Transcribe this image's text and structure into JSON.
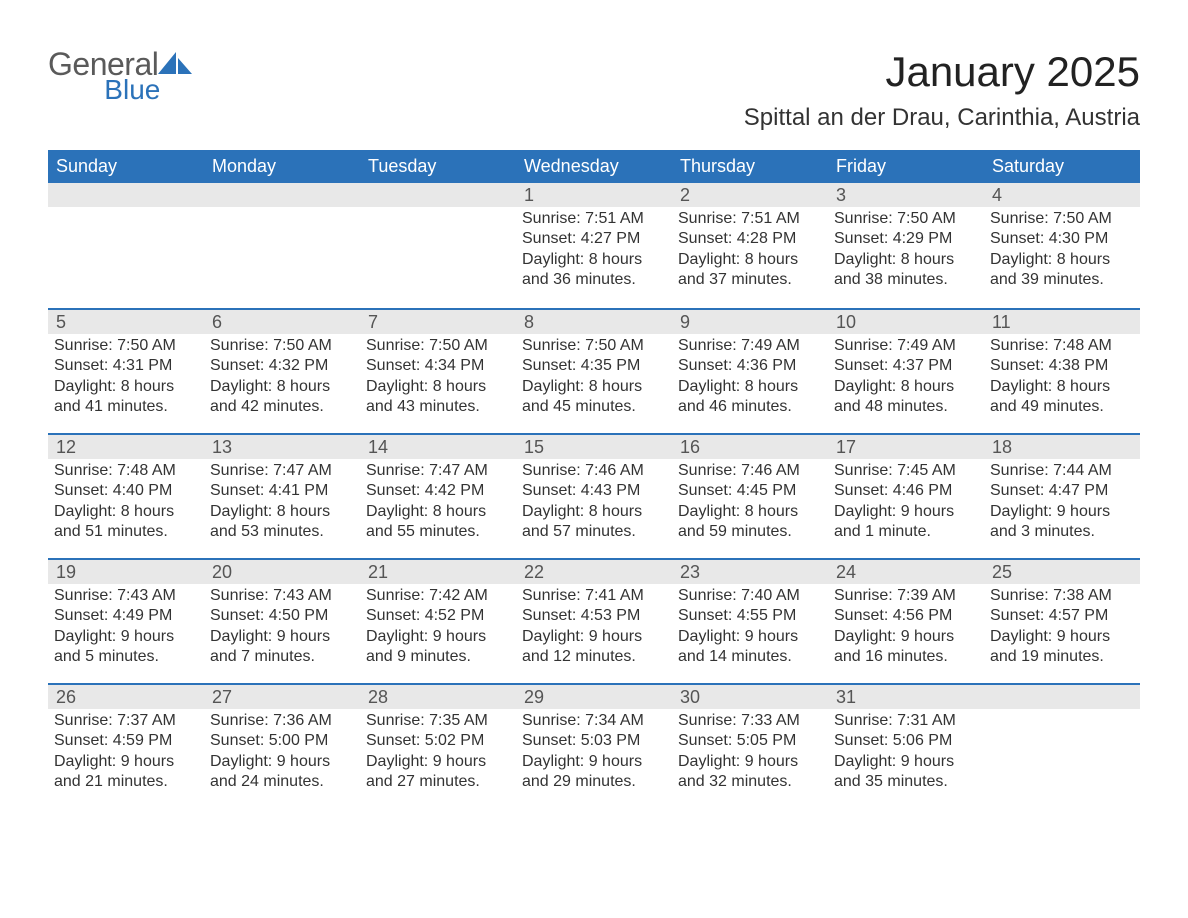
{
  "brand": {
    "name_top": "General",
    "name_bottom": "Blue",
    "text_color_top": "#5a5a5a",
    "text_color_bottom": "#2b72b9",
    "icon_color": "#2b72b9"
  },
  "title": "January 2025",
  "location": "Spittal an der Drau, Carinthia, Austria",
  "colors": {
    "header_bg": "#2b72b9",
    "header_text": "#ffffff",
    "daynum_bg": "#e8e8e8",
    "daynum_text": "#555555",
    "body_text": "#333333",
    "row_divider": "#2b72b9",
    "page_bg": "#ffffff"
  },
  "typography": {
    "title_fontsize": 42,
    "location_fontsize": 24,
    "weekday_fontsize": 18,
    "daynum_fontsize": 18,
    "body_fontsize": 16
  },
  "weekdays": [
    "Sunday",
    "Monday",
    "Tuesday",
    "Wednesday",
    "Thursday",
    "Friday",
    "Saturday"
  ],
  "weeks": [
    [
      {
        "day": null
      },
      {
        "day": null
      },
      {
        "day": null
      },
      {
        "day": "1",
        "sunrise": "Sunrise: 7:51 AM",
        "sunset": "Sunset: 4:27 PM",
        "daylight1": "Daylight: 8 hours",
        "daylight2": "and 36 minutes."
      },
      {
        "day": "2",
        "sunrise": "Sunrise: 7:51 AM",
        "sunset": "Sunset: 4:28 PM",
        "daylight1": "Daylight: 8 hours",
        "daylight2": "and 37 minutes."
      },
      {
        "day": "3",
        "sunrise": "Sunrise: 7:50 AM",
        "sunset": "Sunset: 4:29 PM",
        "daylight1": "Daylight: 8 hours",
        "daylight2": "and 38 minutes."
      },
      {
        "day": "4",
        "sunrise": "Sunrise: 7:50 AM",
        "sunset": "Sunset: 4:30 PM",
        "daylight1": "Daylight: 8 hours",
        "daylight2": "and 39 minutes."
      }
    ],
    [
      {
        "day": "5",
        "sunrise": "Sunrise: 7:50 AM",
        "sunset": "Sunset: 4:31 PM",
        "daylight1": "Daylight: 8 hours",
        "daylight2": "and 41 minutes."
      },
      {
        "day": "6",
        "sunrise": "Sunrise: 7:50 AM",
        "sunset": "Sunset: 4:32 PM",
        "daylight1": "Daylight: 8 hours",
        "daylight2": "and 42 minutes."
      },
      {
        "day": "7",
        "sunrise": "Sunrise: 7:50 AM",
        "sunset": "Sunset: 4:34 PM",
        "daylight1": "Daylight: 8 hours",
        "daylight2": "and 43 minutes."
      },
      {
        "day": "8",
        "sunrise": "Sunrise: 7:50 AM",
        "sunset": "Sunset: 4:35 PM",
        "daylight1": "Daylight: 8 hours",
        "daylight2": "and 45 minutes."
      },
      {
        "day": "9",
        "sunrise": "Sunrise: 7:49 AM",
        "sunset": "Sunset: 4:36 PM",
        "daylight1": "Daylight: 8 hours",
        "daylight2": "and 46 minutes."
      },
      {
        "day": "10",
        "sunrise": "Sunrise: 7:49 AM",
        "sunset": "Sunset: 4:37 PM",
        "daylight1": "Daylight: 8 hours",
        "daylight2": "and 48 minutes."
      },
      {
        "day": "11",
        "sunrise": "Sunrise: 7:48 AM",
        "sunset": "Sunset: 4:38 PM",
        "daylight1": "Daylight: 8 hours",
        "daylight2": "and 49 minutes."
      }
    ],
    [
      {
        "day": "12",
        "sunrise": "Sunrise: 7:48 AM",
        "sunset": "Sunset: 4:40 PM",
        "daylight1": "Daylight: 8 hours",
        "daylight2": "and 51 minutes."
      },
      {
        "day": "13",
        "sunrise": "Sunrise: 7:47 AM",
        "sunset": "Sunset: 4:41 PM",
        "daylight1": "Daylight: 8 hours",
        "daylight2": "and 53 minutes."
      },
      {
        "day": "14",
        "sunrise": "Sunrise: 7:47 AM",
        "sunset": "Sunset: 4:42 PM",
        "daylight1": "Daylight: 8 hours",
        "daylight2": "and 55 minutes."
      },
      {
        "day": "15",
        "sunrise": "Sunrise: 7:46 AM",
        "sunset": "Sunset: 4:43 PM",
        "daylight1": "Daylight: 8 hours",
        "daylight2": "and 57 minutes."
      },
      {
        "day": "16",
        "sunrise": "Sunrise: 7:46 AM",
        "sunset": "Sunset: 4:45 PM",
        "daylight1": "Daylight: 8 hours",
        "daylight2": "and 59 minutes."
      },
      {
        "day": "17",
        "sunrise": "Sunrise: 7:45 AM",
        "sunset": "Sunset: 4:46 PM",
        "daylight1": "Daylight: 9 hours",
        "daylight2": "and 1 minute."
      },
      {
        "day": "18",
        "sunrise": "Sunrise: 7:44 AM",
        "sunset": "Sunset: 4:47 PM",
        "daylight1": "Daylight: 9 hours",
        "daylight2": "and 3 minutes."
      }
    ],
    [
      {
        "day": "19",
        "sunrise": "Sunrise: 7:43 AM",
        "sunset": "Sunset: 4:49 PM",
        "daylight1": "Daylight: 9 hours",
        "daylight2": "and 5 minutes."
      },
      {
        "day": "20",
        "sunrise": "Sunrise: 7:43 AM",
        "sunset": "Sunset: 4:50 PM",
        "daylight1": "Daylight: 9 hours",
        "daylight2": "and 7 minutes."
      },
      {
        "day": "21",
        "sunrise": "Sunrise: 7:42 AM",
        "sunset": "Sunset: 4:52 PM",
        "daylight1": "Daylight: 9 hours",
        "daylight2": "and 9 minutes."
      },
      {
        "day": "22",
        "sunrise": "Sunrise: 7:41 AM",
        "sunset": "Sunset: 4:53 PM",
        "daylight1": "Daylight: 9 hours",
        "daylight2": "and 12 minutes."
      },
      {
        "day": "23",
        "sunrise": "Sunrise: 7:40 AM",
        "sunset": "Sunset: 4:55 PM",
        "daylight1": "Daylight: 9 hours",
        "daylight2": "and 14 minutes."
      },
      {
        "day": "24",
        "sunrise": "Sunrise: 7:39 AM",
        "sunset": "Sunset: 4:56 PM",
        "daylight1": "Daylight: 9 hours",
        "daylight2": "and 16 minutes."
      },
      {
        "day": "25",
        "sunrise": "Sunrise: 7:38 AM",
        "sunset": "Sunset: 4:57 PM",
        "daylight1": "Daylight: 9 hours",
        "daylight2": "and 19 minutes."
      }
    ],
    [
      {
        "day": "26",
        "sunrise": "Sunrise: 7:37 AM",
        "sunset": "Sunset: 4:59 PM",
        "daylight1": "Daylight: 9 hours",
        "daylight2": "and 21 minutes."
      },
      {
        "day": "27",
        "sunrise": "Sunrise: 7:36 AM",
        "sunset": "Sunset: 5:00 PM",
        "daylight1": "Daylight: 9 hours",
        "daylight2": "and 24 minutes."
      },
      {
        "day": "28",
        "sunrise": "Sunrise: 7:35 AM",
        "sunset": "Sunset: 5:02 PM",
        "daylight1": "Daylight: 9 hours",
        "daylight2": "and 27 minutes."
      },
      {
        "day": "29",
        "sunrise": "Sunrise: 7:34 AM",
        "sunset": "Sunset: 5:03 PM",
        "daylight1": "Daylight: 9 hours",
        "daylight2": "and 29 minutes."
      },
      {
        "day": "30",
        "sunrise": "Sunrise: 7:33 AM",
        "sunset": "Sunset: 5:05 PM",
        "daylight1": "Daylight: 9 hours",
        "daylight2": "and 32 minutes."
      },
      {
        "day": "31",
        "sunrise": "Sunrise: 7:31 AM",
        "sunset": "Sunset: 5:06 PM",
        "daylight1": "Daylight: 9 hours",
        "daylight2": "and 35 minutes."
      },
      {
        "day": null
      }
    ]
  ]
}
